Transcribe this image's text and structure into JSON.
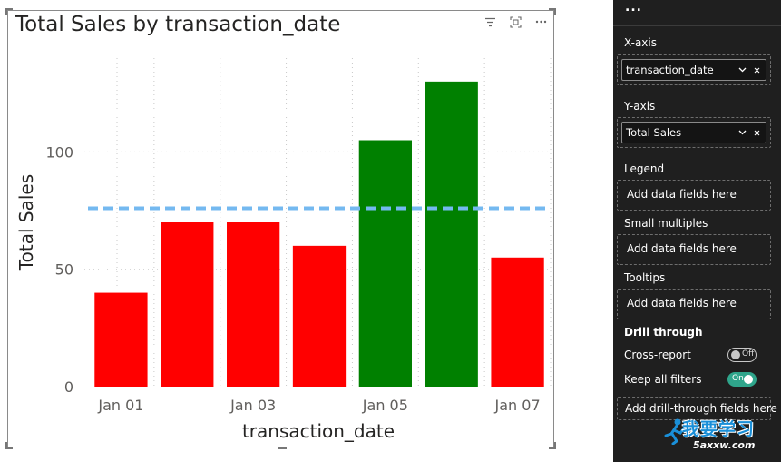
{
  "visual": {
    "title": "Total Sales by transaction_date",
    "header_icons": [
      "filter-icon",
      "focus-mode-icon",
      "more-options-icon"
    ]
  },
  "chart_data": {
    "type": "bar",
    "title": "Total Sales by transaction_date",
    "xlabel": "transaction_date",
    "ylabel": "Total Sales",
    "x_tick_labels": [
      "Jan 01",
      "Jan 03",
      "Jan 05",
      "Jan 07"
    ],
    "categories": [
      "Jan 01",
      "Jan 02",
      "Jan 03",
      "Jan 04",
      "Jan 05",
      "Jan 06",
      "Jan 07"
    ],
    "values": [
      40,
      70,
      70,
      60,
      105,
      130,
      55
    ],
    "bar_colors": [
      "#ff0000",
      "#ff0000",
      "#ff0000",
      "#ff0000",
      "#008000",
      "#008000",
      "#ff0000"
    ],
    "ylim": [
      0,
      140
    ],
    "y_ticks": [
      0,
      50,
      100
    ],
    "average_line": {
      "value": 76,
      "color": "#74b9f0",
      "style": "dashed"
    },
    "grid": true,
    "legend": "none"
  },
  "pane": {
    "more_label": "...",
    "xaxis": {
      "label": "X-axis",
      "field": "transaction_date"
    },
    "yaxis": {
      "label": "Y-axis",
      "field": "Total Sales"
    },
    "legend": {
      "label": "Legend",
      "placeholder": "Add data fields here"
    },
    "small_multiples": {
      "label": "Small multiples",
      "placeholder": "Add data fields here"
    },
    "tooltips": {
      "label": "Tooltips",
      "placeholder": "Add data fields here"
    },
    "drill_through": {
      "title": "Drill through",
      "cross_report": {
        "label": "Cross-report",
        "state": "Off"
      },
      "keep_filters": {
        "label": "Keep all filters",
        "state": "On"
      },
      "placeholder": "Add drill-through fields here"
    }
  },
  "watermark": {
    "text": "我要学习",
    "url": "5axxw.com"
  }
}
